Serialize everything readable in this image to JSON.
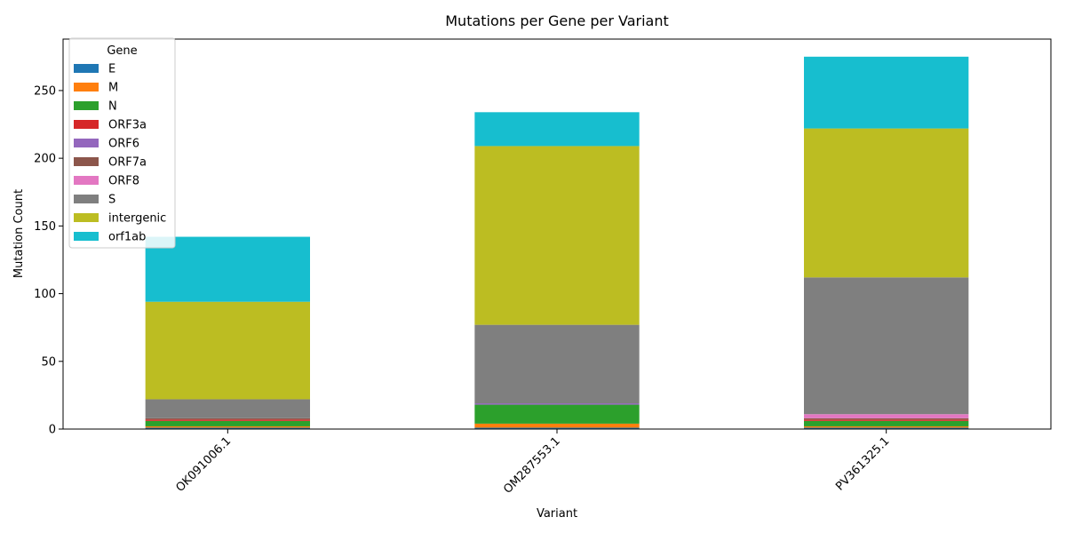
{
  "chart_data": {
    "type": "bar",
    "stacked": true,
    "title": "Mutations per Gene per Variant",
    "xlabel": "Variant",
    "ylabel": "Mutation Count",
    "categories": [
      "OK091006.1",
      "OM287553.1",
      "PV361325.1"
    ],
    "ylim": [
      0,
      288
    ],
    "yticks": [
      0,
      50,
      100,
      150,
      200,
      250
    ],
    "grid": false,
    "legend": {
      "title": "Gene",
      "placement": "top-left"
    },
    "series": [
      {
        "name": "E",
        "color": "#1f77b4",
        "values": [
          1,
          1,
          1
        ]
      },
      {
        "name": "M",
        "color": "#ff7f0e",
        "values": [
          1,
          3,
          1
        ]
      },
      {
        "name": "N",
        "color": "#2ca02c",
        "values": [
          4,
          14,
          4
        ]
      },
      {
        "name": "ORF3a",
        "color": "#d62728",
        "values": [
          1,
          0,
          1
        ]
      },
      {
        "name": "ORF6",
        "color": "#9467bd",
        "values": [
          0,
          1,
          0
        ]
      },
      {
        "name": "ORF7a",
        "color": "#8c564b",
        "values": [
          1,
          0,
          1
        ]
      },
      {
        "name": "ORF8",
        "color": "#e377c2",
        "values": [
          0,
          0,
          3
        ]
      },
      {
        "name": "S",
        "color": "#7f7f7f",
        "values": [
          14,
          58,
          101
        ]
      },
      {
        "name": "intergenic",
        "color": "#bcbd22",
        "values": [
          72,
          132,
          110
        ]
      },
      {
        "name": "orf1ab",
        "color": "#17becf",
        "values": [
          48,
          25,
          53
        ]
      }
    ]
  }
}
